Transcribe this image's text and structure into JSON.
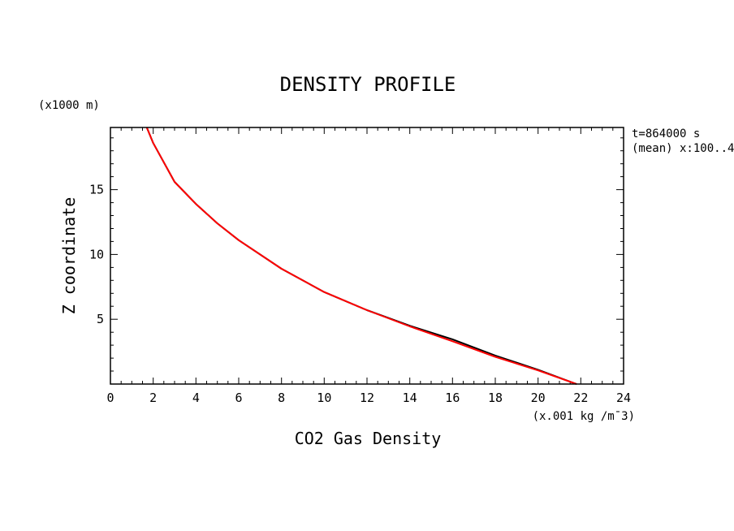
{
  "chart_data": {
    "type": "line",
    "title": "DENSITY PROFILE",
    "xlabel": "CO2 Gas Density",
    "ylabel": "Z coordinate",
    "x_units": "(x.001 kg /m¯3)",
    "y_units": "(x1000 m)",
    "annotations": [
      "t=864000 s",
      "(mean) x:100..4"
    ],
    "xlim": [
      0,
      24
    ],
    "ylim": [
      0,
      19.8
    ],
    "x_ticks": [
      0,
      2,
      4,
      6,
      8,
      10,
      12,
      14,
      16,
      18,
      20,
      22,
      24
    ],
    "y_ticks": [
      5,
      10,
      15
    ],
    "grid": false,
    "legend": "none",
    "series": [
      {
        "color": "#000000",
        "points": [
          [
            1.7,
            19.8
          ],
          [
            2.0,
            18.6
          ],
          [
            3.0,
            15.6
          ],
          [
            4.0,
            13.9
          ],
          [
            5.0,
            12.4
          ],
          [
            6.0,
            11.1
          ],
          [
            8.0,
            8.9
          ],
          [
            10.0,
            7.1
          ],
          [
            12.0,
            5.7
          ],
          [
            14.0,
            4.5
          ],
          [
            16.0,
            3.45
          ],
          [
            18.0,
            2.2
          ],
          [
            20.0,
            1.1
          ],
          [
            21.8,
            0.0
          ]
        ]
      },
      {
        "color": "#ff0000",
        "points": [
          [
            1.7,
            19.8
          ],
          [
            2.0,
            18.6
          ],
          [
            3.0,
            15.6
          ],
          [
            4.0,
            13.9
          ],
          [
            5.0,
            12.4
          ],
          [
            6.0,
            11.1
          ],
          [
            8.0,
            8.9
          ],
          [
            10.0,
            7.1
          ],
          [
            12.0,
            5.7
          ],
          [
            14.0,
            4.45
          ],
          [
            16.0,
            3.3
          ],
          [
            18.0,
            2.1
          ],
          [
            20.0,
            1.05
          ],
          [
            21.8,
            0.0
          ]
        ]
      }
    ]
  }
}
